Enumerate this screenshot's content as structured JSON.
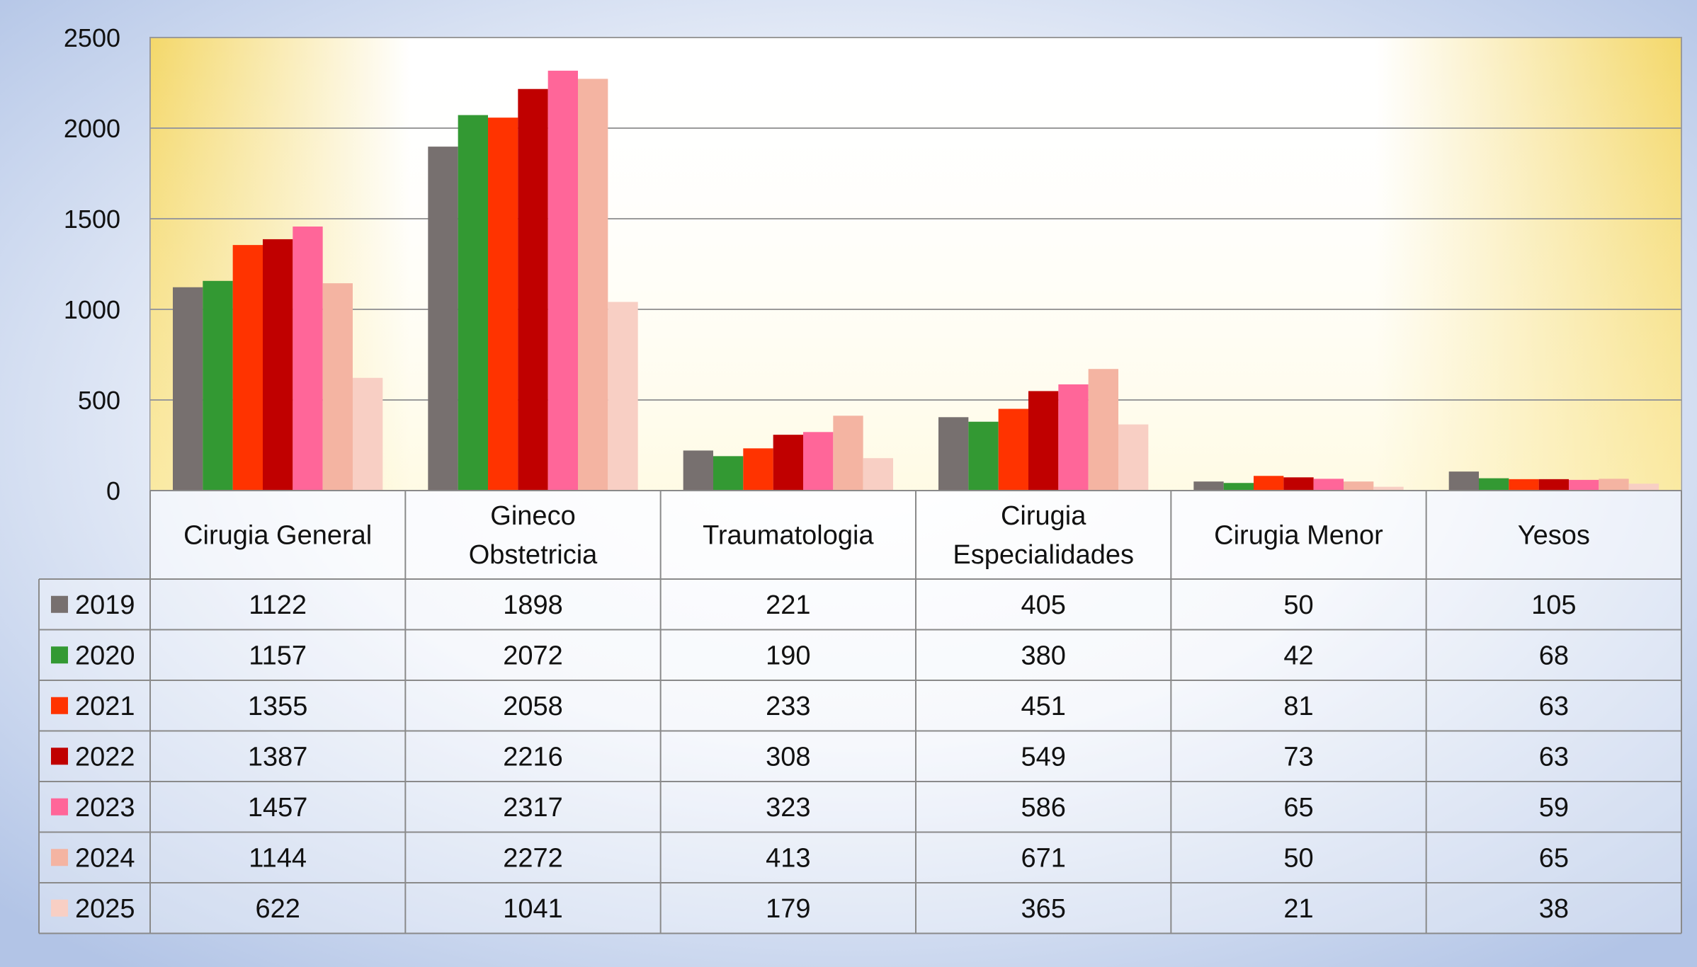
{
  "colors": {
    "series": [
      "#77706f",
      "#339933",
      "#ff3300",
      "#c00000",
      "#ff6699",
      "#f4b4a2",
      "#f8cfc4"
    ],
    "plot_glow": "#f4d86a",
    "grid": "#9a9a9a",
    "table_border": "#8a8a8a"
  },
  "chart_data": {
    "type": "bar",
    "title": "",
    "xlabel": "",
    "ylabel": "",
    "ylim": [
      0,
      2500
    ],
    "yticks": [
      0,
      500,
      1000,
      1500,
      2000,
      2500
    ],
    "grid": true,
    "legend": "data-table-left",
    "categories": [
      [
        "Cirugia General"
      ],
      [
        "Gineco",
        "Obstetricia"
      ],
      [
        "Traumatologia"
      ],
      [
        "Cirugia",
        "Especialidades"
      ],
      [
        "Cirugia Menor"
      ],
      [
        "Yesos"
      ]
    ],
    "series": [
      {
        "name": "2019",
        "values": [
          1122,
          1898,
          221,
          405,
          50,
          105
        ]
      },
      {
        "name": "2020",
        "values": [
          1157,
          2072,
          190,
          380,
          42,
          68
        ]
      },
      {
        "name": "2021",
        "values": [
          1355,
          2058,
          233,
          451,
          81,
          63
        ]
      },
      {
        "name": "2022",
        "values": [
          1387,
          2216,
          308,
          549,
          73,
          63
        ]
      },
      {
        "name": "2023",
        "values": [
          1457,
          2317,
          323,
          586,
          65,
          59
        ]
      },
      {
        "name": "2024",
        "values": [
          1144,
          2272,
          413,
          671,
          50,
          65
        ]
      },
      {
        "name": "2025",
        "values": [
          622,
          1041,
          179,
          365,
          21,
          38
        ]
      }
    ]
  }
}
